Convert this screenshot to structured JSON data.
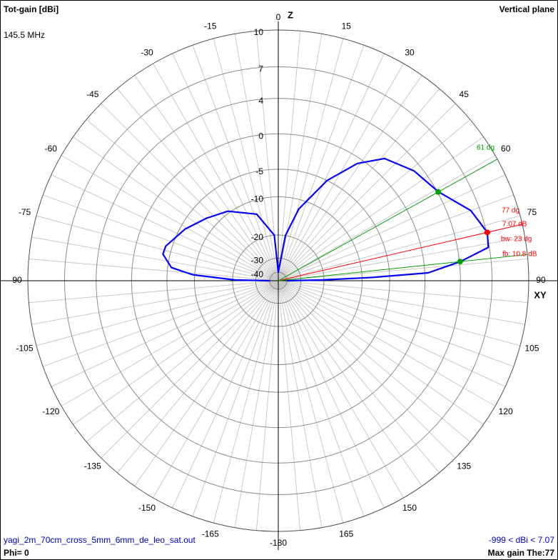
{
  "chart_data": {
    "type": "polar",
    "title": "Tot-gain [dBi]",
    "subtitle": "145.5 MHz",
    "plane_label": "Vertical plane",
    "zenith_label": "Z",
    "horizon_label": "XY",
    "rlim": [
      -50,
      10
    ],
    "rticks": [
      10,
      7,
      4,
      0,
      -5,
      -10,
      -20,
      -30,
      -40
    ],
    "thetaticks": [
      0,
      15,
      30,
      45,
      60,
      75,
      90,
      105,
      120,
      135,
      150,
      165,
      -180,
      -165,
      -150,
      -135,
      -120,
      -105,
      -90,
      -75,
      -60,
      -45,
      -30,
      -15
    ],
    "theta_grid": [
      -175,
      -170,
      -165,
      -160,
      -155,
      -150,
      -145,
      -140,
      -135,
      -130,
      -125,
      -120,
      -115,
      -110,
      -105,
      -100,
      -95,
      -90,
      -85,
      -80,
      -75,
      -70,
      -65,
      -60,
      -55,
      -50,
      -45,
      -40,
      -35,
      -30,
      -25,
      -20,
      -15,
      -10,
      -5,
      0,
      5,
      10,
      15,
      20,
      25,
      30,
      35,
      40,
      45,
      50,
      55,
      60,
      65,
      70,
      75,
      80,
      85,
      90,
      95,
      100,
      105,
      110,
      115,
      120,
      125,
      130,
      135,
      140,
      145,
      150,
      155,
      160,
      165,
      170,
      175,
      180
    ],
    "color": "#0000ff",
    "theta": [
      -90,
      -89,
      -86,
      -83,
      -77,
      -73,
      -61,
      -49,
      -36,
      -18,
      -5,
      0,
      9,
      16,
      26,
      34,
      41,
      51,
      61,
      70,
      77,
      81,
      84,
      87,
      88,
      89,
      90
    ],
    "values": [
      -40,
      -21,
      -9.6,
      -5.6,
      -3.9,
      -4.0,
      -5.8,
      -7.8,
      -9.6,
      -13.1,
      -20,
      -40,
      -20,
      -12,
      -5,
      -0.7,
      1.8,
      3.2,
      4.1,
      6.2,
      7.07,
      6.9,
      4.1,
      0.4,
      -8.2,
      -21,
      -40
    ],
    "markers": [
      {
        "theta": 61,
        "value": 4.07,
        "color": "#00a000"
      },
      {
        "theta": 77,
        "value": 7.07,
        "color": "#ff0000"
      },
      {
        "theta": 84,
        "value": 4.07,
        "color": "#00a000"
      }
    ],
    "annotations": [
      "61 dg",
      "77 dg",
      "7.07 dB",
      "bw: 23 dg",
      "fb: 10.8 dB"
    ],
    "footer": {
      "file": "yagi_2m_70cm_cross_5mm_6mm_de_leo_sat.out",
      "range": "-999 < dBi < 7.07",
      "phi": "Phi= 0",
      "max_gain": "Max gain The:77"
    }
  }
}
